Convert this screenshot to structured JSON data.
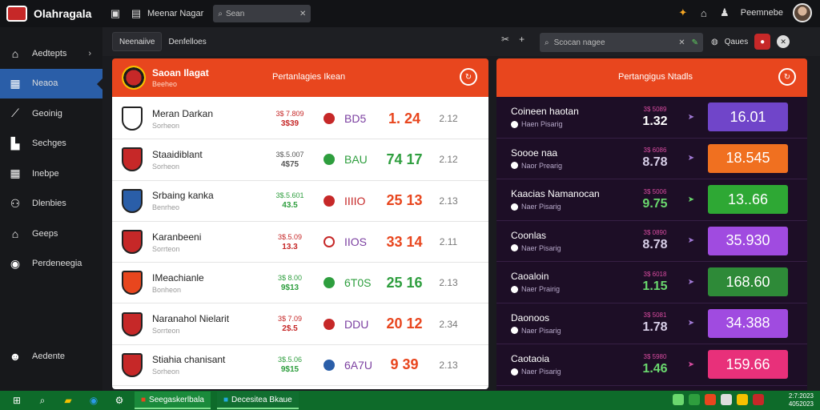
{
  "app": {
    "title": "Olahragala"
  },
  "topbar": {
    "center_label": "Meenar Nagar",
    "search_placeholder": "Sean",
    "user_label": "Peemnebe"
  },
  "sidebar": {
    "items": [
      {
        "icon": "home-icon",
        "label": "Aedtepts",
        "has_chevron": true
      },
      {
        "icon": "building-icon",
        "label": "Neaoa",
        "active": true
      },
      {
        "icon": "link-icon",
        "label": "Geoinig"
      },
      {
        "icon": "bag-icon",
        "label": "Sechges"
      },
      {
        "icon": "grid-icon",
        "label": "Inebpe"
      },
      {
        "icon": "people-icon",
        "label": "Dlenbies"
      },
      {
        "icon": "house-icon",
        "label": "Geeps"
      },
      {
        "icon": "target-icon",
        "label": "Perdeneegia"
      }
    ],
    "bottom": {
      "icon": "user-icon",
      "label": "Aedente"
    }
  },
  "toolbar": {
    "tabs": [
      "Neenaiive",
      "Denfelloes"
    ],
    "search_placeholder": "Scocan nagee",
    "right_label": "Qaues"
  },
  "left_panel": {
    "team": "Saoan Ilagat",
    "subtitle": "Beeheo",
    "center_label": "Pertanlagies Ikean",
    "rows": [
      {
        "name": "Meran Darkan",
        "sub": "Sorheon",
        "o1": "3$ 7.809",
        "o2": "3$39",
        "dot_color": "#c62828",
        "code": "BD5",
        "code_color": "#7b3fa0",
        "score": "1. 24",
        "score_color": "#e8461e",
        "last": "2.12",
        "crest": "#ffffff",
        "o_color": "#c62828"
      },
      {
        "name": "Staaidiblant",
        "sub": "Sorheon",
        "o1": "3$.5.007",
        "o2": "4$75",
        "dot_color": "#2e9e3e",
        "code": "BAU",
        "code_color": "#2e9e3e",
        "score": "74 17",
        "score_color": "#2e9e3e",
        "last": "2.12",
        "crest": "#c62828",
        "o_color": "#555555"
      },
      {
        "name": "Srbaing kanka",
        "sub": "Benrheo",
        "o1": "3$.5.601",
        "o2": "43.5",
        "dot_color": "#c62828",
        "code": "IIIIO",
        "code_color": "#c62828",
        "score": "25 13",
        "score_color": "#e8461e",
        "last": "2.13",
        "crest": "#2a5ea8",
        "o_color": "#2e9e3e"
      },
      {
        "name": "Karanbeeni",
        "sub": "Sorrteon",
        "o1": "3$.5.09",
        "o2": "13.3",
        "dot_color": "#ffffff",
        "code": "IIOS",
        "code_color": "#7b3fa0",
        "score": "33 14",
        "score_color": "#e8461e",
        "last": "2.11",
        "crest": "#c62828",
        "o_color": "#c62828"
      },
      {
        "name": "IMeachianle",
        "sub": "Bonheon",
        "o1": "3$ 8.00",
        "o2": "9$13",
        "dot_color": "#2e9e3e",
        "code": "6T0S",
        "code_color": "#2e9e3e",
        "score": "25 16",
        "score_color": "#2e9e3e",
        "last": "2.13",
        "crest": "#e8461e",
        "o_color": "#2e9e3e"
      },
      {
        "name": "Naranahol Nielarit",
        "sub": "Sorrteon",
        "o1": "3$ 7.09",
        "o2": "2$.5",
        "dot_color": "#c62828",
        "code": "DDU",
        "code_color": "#7b3fa0",
        "score": "20 12",
        "score_color": "#e8461e",
        "last": "2.34",
        "crest": "#c62828",
        "o_color": "#c62828"
      },
      {
        "name": "Stiahia chanisant",
        "sub": "Sorheon",
        "o1": "3$.5.06",
        "o2": "9$15",
        "dot_color": "#2a5ea8",
        "code": "6A7U",
        "code_color": "#7b3fa0",
        "score": "9 39",
        "score_color": "#e8461e",
        "last": "2.13",
        "crest": "#c62828",
        "o_color": "#2e9e3e"
      }
    ]
  },
  "right_panel": {
    "center_label": "Pertangigus Ntadls",
    "rows": [
      {
        "name": "Coineen haotan",
        "sub": "Haen Pisarig",
        "v1": "3$ 5089",
        "v2": "1.32",
        "v_color": "#ffffff",
        "arrow_color": "#a37bd8",
        "chip": "16.01",
        "chip_color": "#7045c9"
      },
      {
        "name": "Soooe naa",
        "sub": "Naor Prearig",
        "v1": "3$ 6086",
        "v2": "8.78",
        "v_color": "#d8cfe8",
        "arrow_color": "#a37bd8",
        "chip": "18.545",
        "chip_color": "#f07020"
      },
      {
        "name": "Kaacias Namanocan",
        "sub": "Naer Pisarig",
        "v1": "3$ 5006",
        "v2": "9.75",
        "v_color": "#6ad86e",
        "arrow_color": "#6ad86e",
        "chip": "13..66",
        "chip_color": "#2ea834"
      },
      {
        "name": "Coonlas",
        "sub": "Naer Pisarig",
        "v1": "3$ 0890",
        "v2": "8.78",
        "v_color": "#d8cfe8",
        "arrow_color": "#a37bd8",
        "chip": "35.930",
        "chip_color": "#a04be0"
      },
      {
        "name": "Caoaloin",
        "sub": "Naer Prairig",
        "v1": "3$ 6018",
        "v2": "1.15",
        "v_color": "#6ad86e",
        "arrow_color": "#a37bd8",
        "chip": "168.60",
        "chip_color": "#2e8a38"
      },
      {
        "name": "Daonoos",
        "sub": "Naer Pisarig",
        "v1": "3$ 5081",
        "v2": "1.78",
        "v_color": "#d8cfe8",
        "arrow_color": "#a37bd8",
        "chip": "34.388",
        "chip_color": "#a04be0"
      },
      {
        "name": "Caotaoia",
        "sub": "Naer Pisarig",
        "v1": "3$ 5980",
        "v2": "1.46",
        "v_color": "#6ad86e",
        "arrow_color": "#d84ba0",
        "chip": "159.66",
        "chip_color": "#e8307a"
      }
    ]
  },
  "taskbar": {
    "apps": [
      "Seegaskerlbala",
      "Decesitea Bkaue"
    ],
    "clock_line1": "2:7:2023",
    "clock_line2": "4052023"
  }
}
